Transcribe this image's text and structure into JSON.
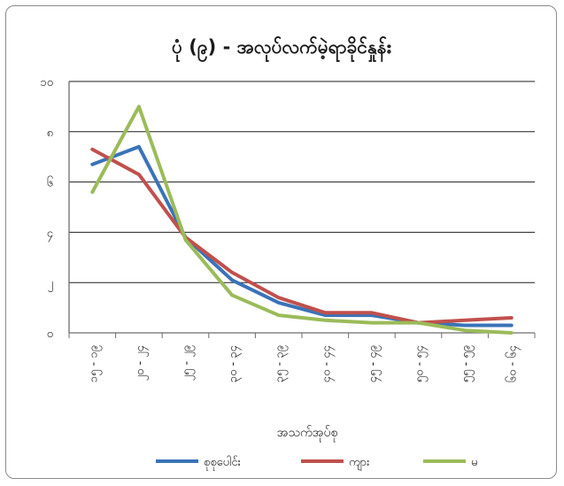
{
  "chart_data": {
    "type": "line",
    "title": "ပုံ (၉) - အလုပ်လက်မဲ့ရာခိုင်နှုန်း",
    "xlabel": "အသက်အုပ်စု",
    "ylabel": "",
    "categories": [
      "၁၅ - ၁၉",
      "၂၀ - ၂၄",
      "၂၅ - ၂၉",
      "၃၀ - ၃၄",
      "၃၅ - ၃၉",
      "၄၀ - ၄၄",
      "၄၅ - ၄၉",
      "၅၀ - ၅၄",
      "၅၅ - ၅၉",
      "၆၀ - ၆၄"
    ],
    "ylim": [
      0,
      10
    ],
    "yticks": [
      0,
      2,
      4,
      6,
      8,
      10
    ],
    "ytick_labels": [
      "၀",
      "၂",
      "၄",
      "၆",
      "၈",
      "၁၀"
    ],
    "grid": true,
    "legend_position": "bottom",
    "series": [
      {
        "name": "စုစုပေါင်း",
        "color": "#3a73b8",
        "values": [
          6.7,
          7.4,
          3.8,
          2.1,
          1.2,
          0.7,
          0.7,
          0.4,
          0.3,
          0.3
        ]
      },
      {
        "name": "ကျား",
        "color": "#c0504d",
        "values": [
          7.3,
          6.3,
          3.8,
          2.4,
          1.4,
          0.8,
          0.8,
          0.4,
          0.5,
          0.6
        ]
      },
      {
        "name": "မ",
        "color": "#9bbb59",
        "values": [
          5.6,
          9.0,
          3.7,
          1.5,
          0.7,
          0.5,
          0.4,
          0.4,
          0.1,
          0.0
        ]
      }
    ]
  }
}
